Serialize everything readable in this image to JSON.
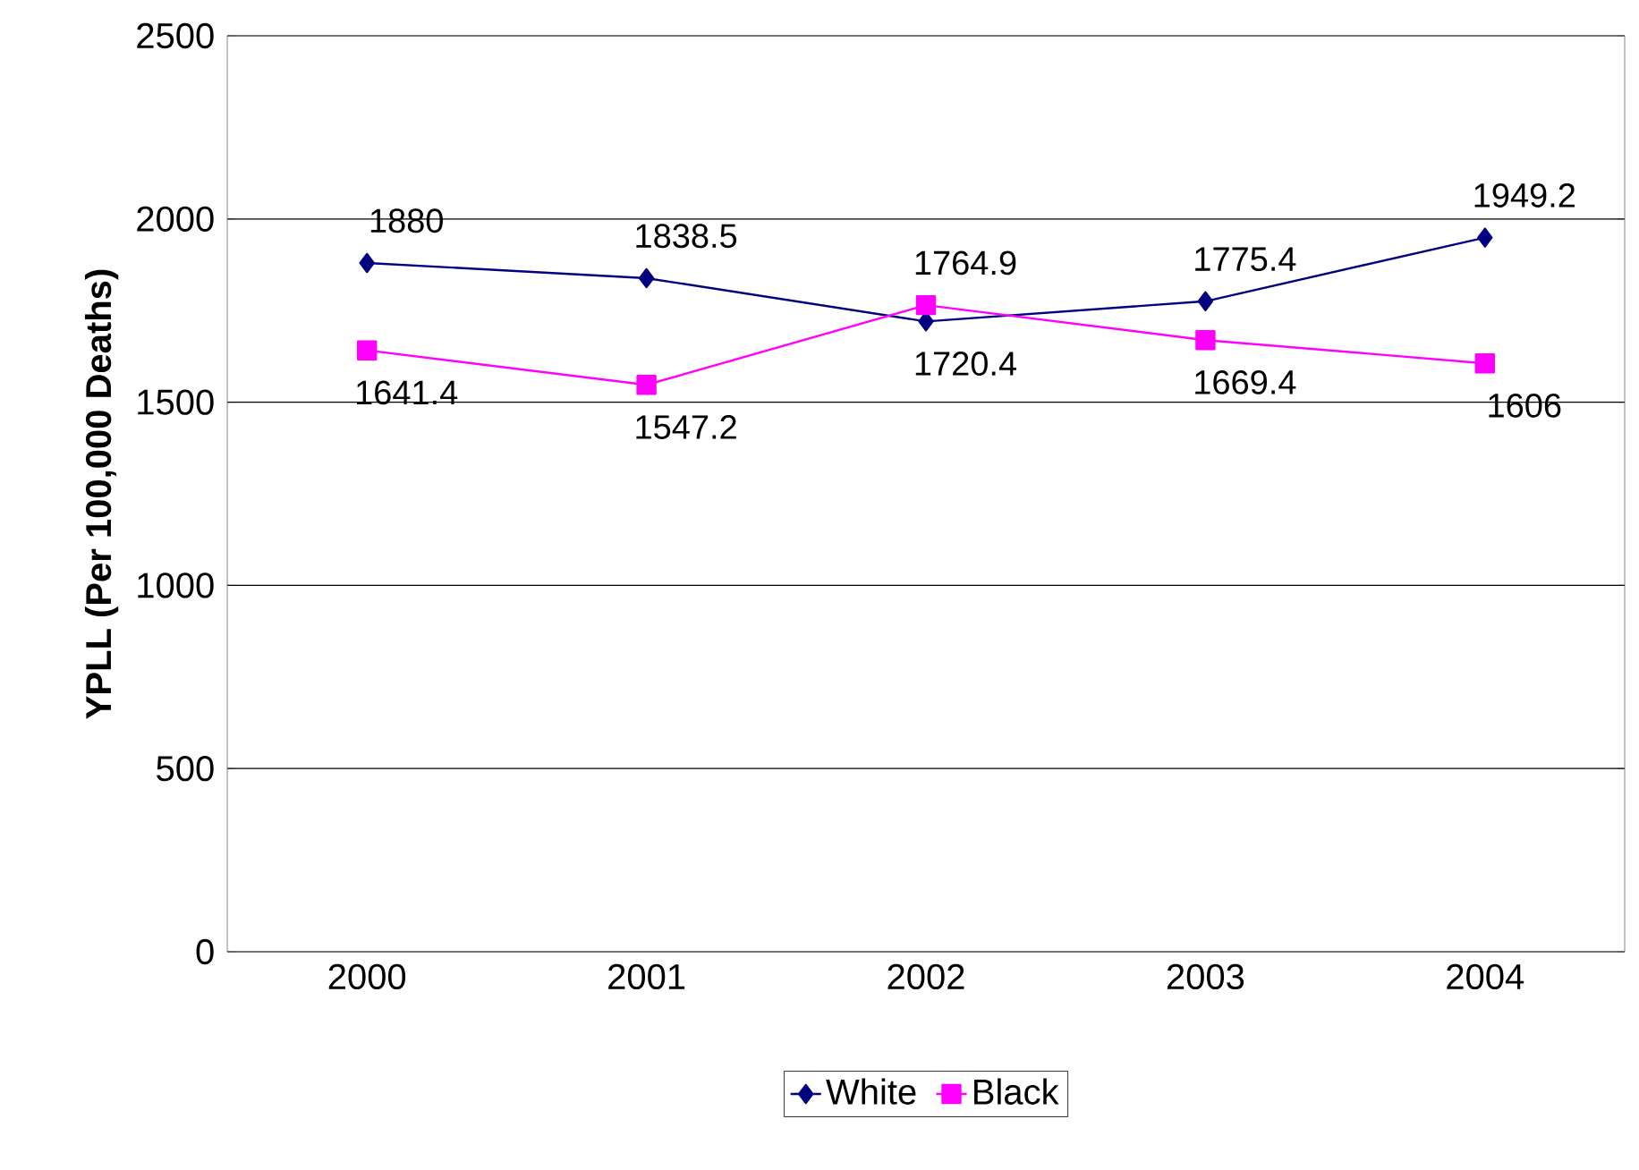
{
  "chart_data": {
    "type": "line",
    "ylabel": "YPLL (Per 100,000 Deaths)",
    "categories": [
      "2000",
      "2001",
      "2002",
      "2003",
      "2004"
    ],
    "series": [
      {
        "name": "White",
        "color": "#000080",
        "marker": "diamond",
        "values": [
          1880,
          1838.5,
          1720.4,
          1775.4,
          1949.2
        ]
      },
      {
        "name": "Black",
        "color": "#ff00ff",
        "marker": "square",
        "values": [
          1641.4,
          1547.2,
          1764.9,
          1669.4,
          1606
        ]
      }
    ],
    "ylim": [
      0,
      2500
    ],
    "yticks": [
      0,
      500,
      1000,
      1500,
      2000,
      2500
    ],
    "grid": "y",
    "legend": "bottom",
    "data_labels": true,
    "line_style": "solid"
  }
}
